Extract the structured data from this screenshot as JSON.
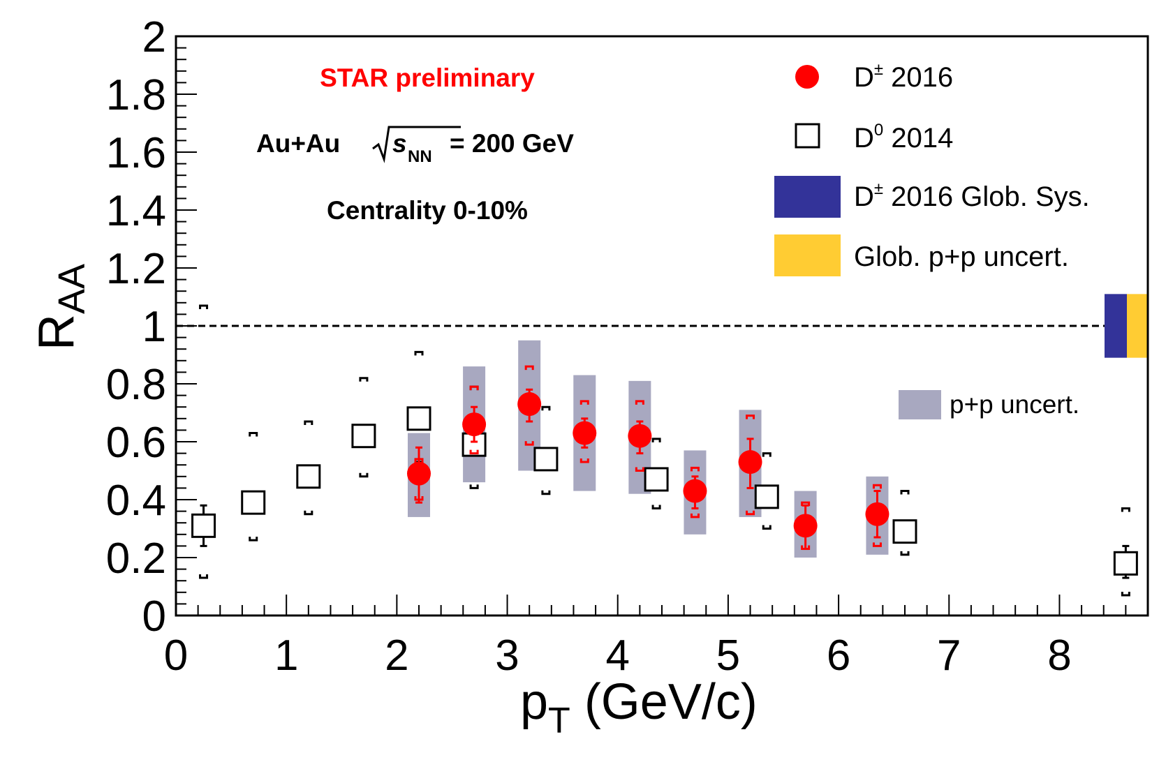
{
  "chart_data": {
    "type": "scatter",
    "title": "",
    "xlabel_main": "p",
    "xlabel_sub": "T",
    "xlabel_rest": " (GeV/c)",
    "ylabel_main": "R",
    "ylabel_sub": "AA",
    "xlim": [
      0,
      8.8
    ],
    "ylim": [
      0,
      2
    ],
    "xticks": [
      "0",
      "1",
      "2",
      "3",
      "4",
      "5",
      "6",
      "7",
      "8"
    ],
    "yticks": [
      "0",
      "0.2",
      "0.4",
      "0.6",
      "0.8",
      "1",
      "1.2",
      "1.4",
      "1.6",
      "1.8",
      "2"
    ],
    "reference_line": 1,
    "annotations": {
      "preliminary": "STAR preliminary",
      "system_prefix": "Au+Au",
      "system_s": "s",
      "system_sub": "NN",
      "system_suffix": "= 200 GeV",
      "centrality": "Centrality 0-10%"
    },
    "legend": {
      "dplus_base": "D",
      "dplus_sup": "±",
      "dplus_rest": " 2016",
      "dzero_base": "D",
      "dzero_sup": "0",
      "dzero_rest": " 2014",
      "glob_sys_base": "D",
      "glob_sys_sup": "±",
      "glob_sys_rest": " 2016 Glob. Sys.",
      "glob_pp": "Glob. p+p uncert.",
      "pp_uncert": "p+p uncert."
    },
    "colors": {
      "dplus": "#ff0000",
      "dzero": "#000000",
      "glob_sys": "#333399",
      "glob_pp": "#ffcc33",
      "pp_band": "#a8a8c0"
    },
    "series": [
      {
        "name": "D± 2016",
        "marker": "filled-circle",
        "points": [
          {
            "x": 2.2,
            "y": 0.49,
            "stat_lo": 0.39,
            "stat_hi": 0.58,
            "sys_lo": 0.4,
            "sys_hi": 0.54,
            "pp_lo": 0.34,
            "pp_hi": 0.63
          },
          {
            "x": 2.7,
            "y": 0.66,
            "stat_lo": 0.6,
            "stat_hi": 0.72,
            "sys_lo": 0.56,
            "sys_hi": 0.79,
            "pp_lo": 0.46,
            "pp_hi": 0.86
          },
          {
            "x": 3.2,
            "y": 0.73,
            "stat_lo": 0.67,
            "stat_hi": 0.78,
            "sys_lo": 0.59,
            "sys_hi": 0.86,
            "pp_lo": 0.5,
            "pp_hi": 0.95
          },
          {
            "x": 3.7,
            "y": 0.63,
            "stat_lo": 0.58,
            "stat_hi": 0.68,
            "sys_lo": 0.53,
            "sys_hi": 0.74,
            "pp_lo": 0.43,
            "pp_hi": 0.83
          },
          {
            "x": 4.2,
            "y": 0.62,
            "stat_lo": 0.56,
            "stat_hi": 0.67,
            "sys_lo": 0.5,
            "sys_hi": 0.74,
            "pp_lo": 0.42,
            "pp_hi": 0.81
          },
          {
            "x": 4.7,
            "y": 0.43,
            "stat_lo": 0.37,
            "stat_hi": 0.48,
            "sys_lo": 0.34,
            "sys_hi": 0.51,
            "pp_lo": 0.28,
            "pp_hi": 0.57
          },
          {
            "x": 5.2,
            "y": 0.53,
            "stat_lo": 0.44,
            "stat_hi": 0.61,
            "sys_lo": 0.35,
            "sys_hi": 0.69,
            "pp_lo": 0.34,
            "pp_hi": 0.71
          },
          {
            "x": 5.7,
            "y": 0.31,
            "stat_lo": 0.23,
            "stat_hi": 0.38,
            "sys_lo": 0.23,
            "sys_hi": 0.39,
            "pp_lo": 0.2,
            "pp_hi": 0.43
          },
          {
            "x": 6.35,
            "y": 0.35,
            "stat_lo": 0.27,
            "stat_hi": 0.43,
            "sys_lo": 0.24,
            "sys_hi": 0.45,
            "pp_lo": 0.21,
            "pp_hi": 0.48
          }
        ]
      },
      {
        "name": "D0 2014",
        "marker": "open-square",
        "points": [
          {
            "x": 0.25,
            "y": 0.31,
            "stat_lo": 0.24,
            "stat_hi": 0.38,
            "sys_lo": 0.13,
            "sys_hi": 1.07
          },
          {
            "x": 0.7,
            "y": 0.39,
            "stat_lo": 0.39,
            "stat_hi": 0.39,
            "sys_lo": 0.26,
            "sys_hi": 0.63
          },
          {
            "x": 1.2,
            "y": 0.48,
            "stat_lo": 0.48,
            "stat_hi": 0.48,
            "sys_lo": 0.35,
            "sys_hi": 0.67
          },
          {
            "x": 1.7,
            "y": 0.62,
            "stat_lo": 0.62,
            "stat_hi": 0.62,
            "sys_lo": 0.48,
            "sys_hi": 0.82
          },
          {
            "x": 2.2,
            "y": 0.68,
            "stat_lo": 0.68,
            "stat_hi": 0.68,
            "sys_lo": 0.53,
            "sys_hi": 0.91
          },
          {
            "x": 2.7,
            "y": 0.59,
            "stat_lo": 0.59,
            "stat_hi": 0.59,
            "sys_lo": 0.44,
            "sys_hi": 0.79
          },
          {
            "x": 3.35,
            "y": 0.54,
            "stat_lo": 0.54,
            "stat_hi": 0.54,
            "sys_lo": 0.42,
            "sys_hi": 0.72
          },
          {
            "x": 4.35,
            "y": 0.47,
            "stat_lo": 0.47,
            "stat_hi": 0.47,
            "sys_lo": 0.37,
            "sys_hi": 0.61
          },
          {
            "x": 5.35,
            "y": 0.41,
            "stat_lo": 0.41,
            "stat_hi": 0.41,
            "sys_lo": 0.3,
            "sys_hi": 0.56
          },
          {
            "x": 6.6,
            "y": 0.29,
            "stat_lo": 0.29,
            "stat_hi": 0.29,
            "sys_lo": 0.21,
            "sys_hi": 0.43
          },
          {
            "x": 8.6,
            "y": 0.18,
            "stat_lo": 0.13,
            "stat_hi": 0.24,
            "sys_lo": 0.07,
            "sys_hi": 0.37
          }
        ]
      }
    ],
    "global_uncertainty_bands": [
      {
        "name": "D± 2016 Glob. Sys.",
        "y_lo": 0.89,
        "y_hi": 1.11
      },
      {
        "name": "Glob. p+p uncert.",
        "y_lo": 0.89,
        "y_hi": 1.11
      }
    ]
  }
}
